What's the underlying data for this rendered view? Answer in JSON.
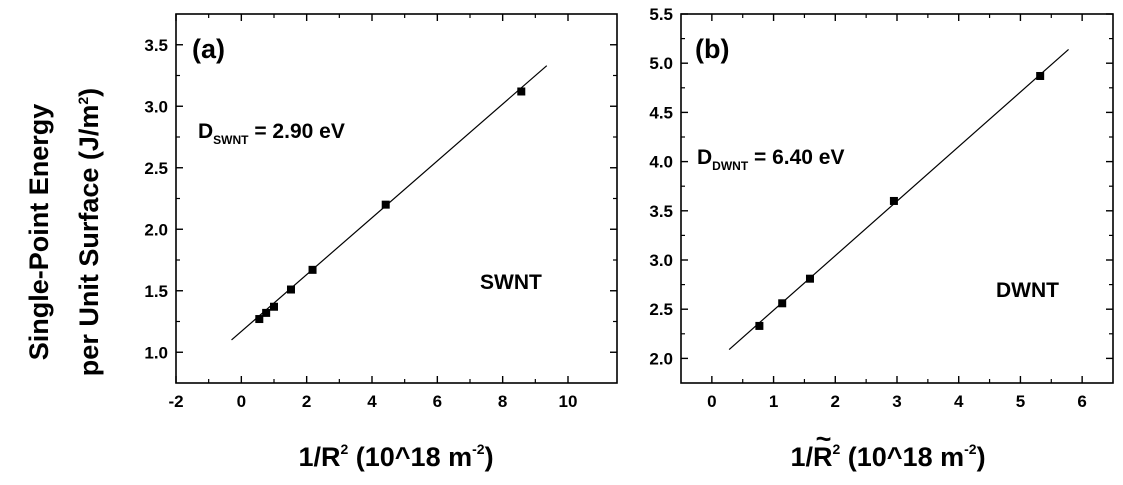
{
  "ylabel": {
    "line1": "Single-Point Energy",
    "line2": "per Unit Surface (J/m",
    "line2_sup": "2",
    "line2_end": ")"
  },
  "chart_data": [
    {
      "type": "scatter",
      "panel_label": "(a)",
      "series_label": "SWNT",
      "annotation": {
        "prefix": "D",
        "subscript": "SWNT",
        "rest": " = 2.90 eV"
      },
      "xlabel": {
        "main": "1/R",
        "sup": "2",
        "mid": " (10^18 m",
        "sup2": "-2",
        "end": ")"
      },
      "xlim": [
        -2,
        11.5
      ],
      "ylim": [
        0.75,
        3.75
      ],
      "xticks": [
        -2,
        0,
        2,
        4,
        6,
        8,
        10
      ],
      "yticks": [
        1.0,
        1.5,
        2.0,
        2.5,
        3.0,
        3.5
      ],
      "x": [
        0.55,
        0.76,
        1.0,
        1.52,
        2.18,
        4.42,
        8.57
      ],
      "y": [
        1.27,
        1.32,
        1.37,
        1.51,
        1.67,
        2.2,
        3.12
      ],
      "fit": {
        "x": [
          -0.3,
          9.35
        ],
        "y": [
          1.1,
          3.33
        ]
      }
    },
    {
      "type": "scatter",
      "panel_label": "(b)",
      "series_label": "DWNT",
      "annotation": {
        "prefix": "D",
        "subscript": "DWNT",
        "rest": " = 6.40 eV"
      },
      "xlabel": {
        "main": "1/R",
        "tilde": "~",
        "sup": "2",
        "mid": "  (10^18 m",
        "sup2": "-2",
        "end": ")"
      },
      "xlim": [
        -0.5,
        6.5
      ],
      "ylim": [
        1.75,
        5.5
      ],
      "xticks": [
        0,
        1,
        2,
        3,
        4,
        5,
        6
      ],
      "yticks": [
        2.0,
        2.5,
        3.0,
        3.5,
        4.0,
        4.5,
        5.0,
        5.5
      ],
      "x": [
        0.77,
        1.14,
        1.59,
        2.95,
        5.32
      ],
      "y": [
        2.33,
        2.56,
        2.81,
        3.6,
        4.87
      ],
      "fit": {
        "x": [
          0.28,
          5.78
        ],
        "y": [
          2.09,
          5.14
        ]
      }
    }
  ]
}
